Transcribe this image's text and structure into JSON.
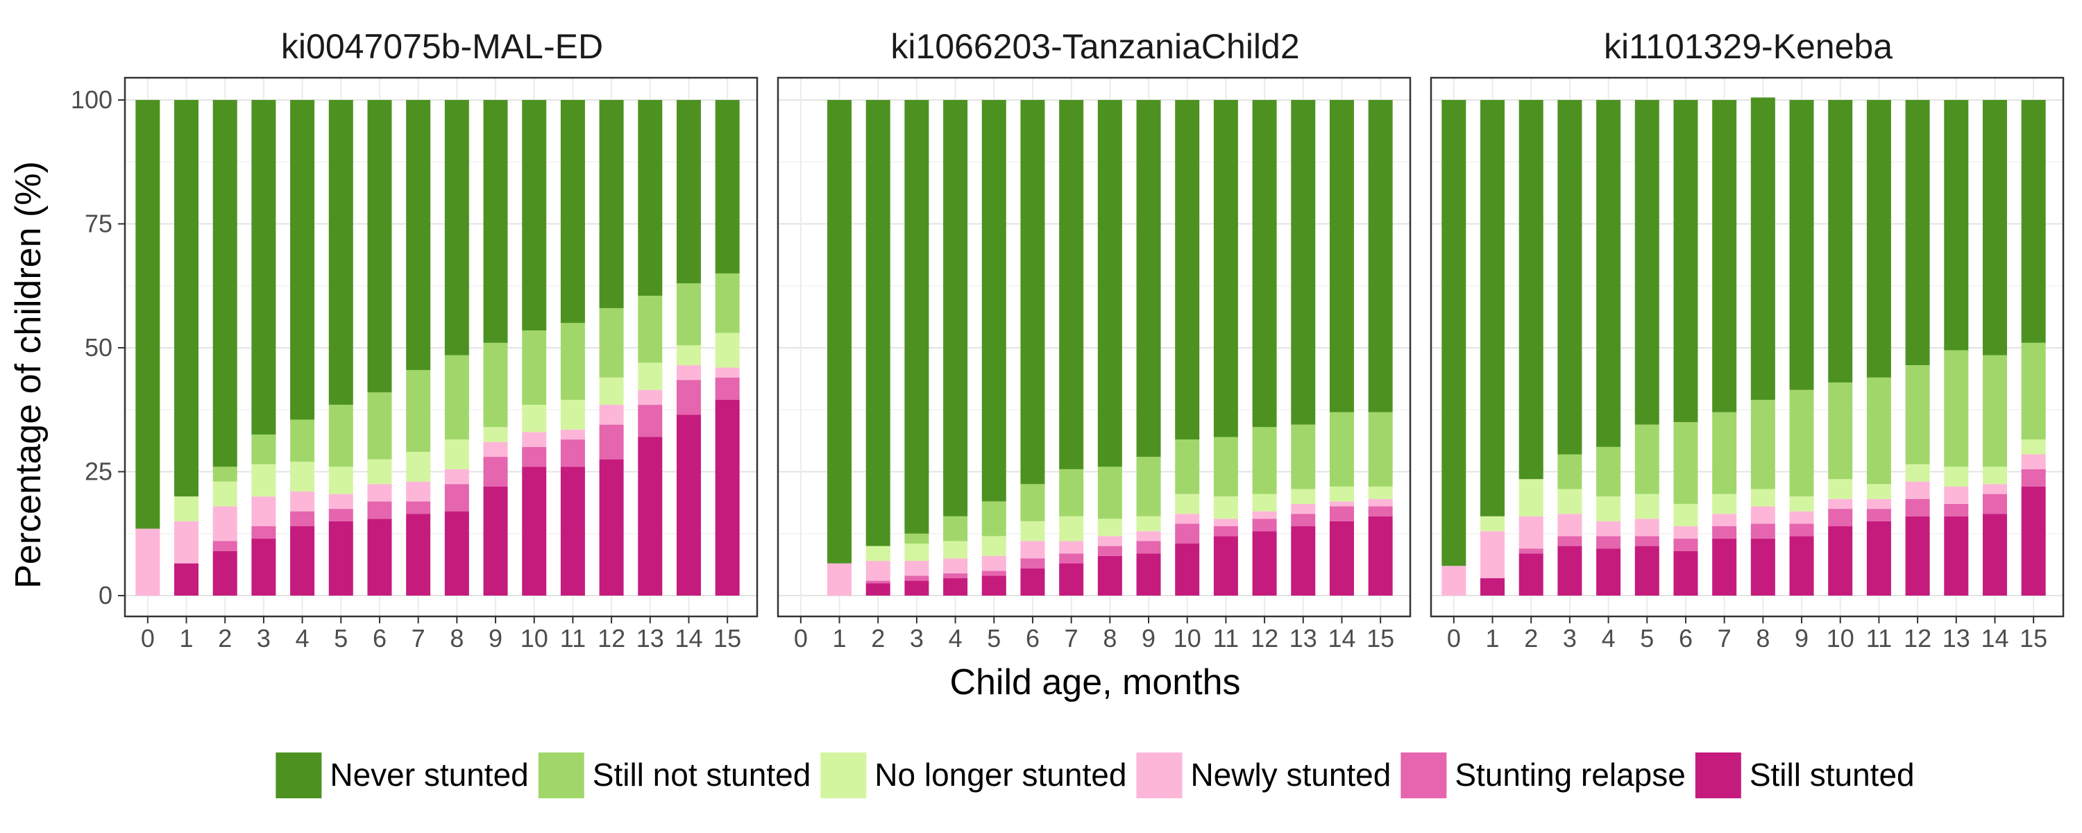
{
  "chart_data": {
    "type": "bar",
    "stacked": true,
    "facets": [
      "ki0047075b-MAL-ED",
      "ki1066203-TanzaniaChild2",
      "ki1101329-Keneba"
    ],
    "categories": [
      "0",
      "1",
      "2",
      "3",
      "4",
      "5",
      "6",
      "7",
      "8",
      "9",
      "10",
      "11",
      "12",
      "13",
      "14",
      "15"
    ],
    "xlabel": "Child age, months",
    "ylabel": "Percentage of children (%)",
    "ylim": [
      0,
      100
    ],
    "yticks": [
      0,
      25,
      50,
      75,
      100
    ],
    "grid": true,
    "legend_position": "bottom",
    "series_order": [
      "Still stunted",
      "Stunting relapse",
      "Newly stunted",
      "No longer stunted",
      "Still not stunted",
      "Never stunted"
    ],
    "legend_order": [
      "Never stunted",
      "Still not stunted",
      "No longer stunted",
      "Newly stunted",
      "Stunting relapse",
      "Still stunted"
    ],
    "colors": {
      "Never stunted": "#4D9221",
      "Still not stunted": "#A1D76A",
      "No longer stunted": "#D4F5A0",
      "Newly stunted": "#FDB6D8",
      "Stunting relapse": "#E565AE",
      "Still stunted": "#C51B7D"
    },
    "panels": [
      {
        "title": "ki0047075b-MAL-ED",
        "series": [
          {
            "name": "Still stunted",
            "values": [
              0,
              6.5,
              9,
              11.5,
              14,
              15,
              15.5,
              16.5,
              17,
              22,
              26,
              26,
              27.5,
              32,
              36.5,
              39.5
            ]
          },
          {
            "name": "Stunting relapse",
            "values": [
              0,
              0,
              2,
              2.5,
              3,
              2.5,
              3.5,
              2.5,
              5.5,
              6,
              4,
              5.5,
              7,
              6.5,
              7,
              4.5
            ]
          },
          {
            "name": "Newly stunted",
            "values": [
              13.5,
              8.5,
              7,
              6,
              4,
              3,
              3.5,
              4,
              3,
              3,
              3,
              2,
              4,
              3,
              3,
              2
            ]
          },
          {
            "name": "No longer stunted",
            "values": [
              0,
              5,
              5,
              6.5,
              6,
              5.5,
              5,
              6,
              6,
              3,
              5.5,
              6,
              5.5,
              5.5,
              4,
              7
            ]
          },
          {
            "name": "Still not stunted",
            "values": [
              0,
              0,
              3,
              6,
              8.5,
              12.5,
              13.5,
              16.5,
              17,
              17,
              15,
              15.5,
              14,
              13.5,
              12.5,
              12
            ]
          },
          {
            "name": "Never stunted",
            "values": [
              86.5,
              80,
              74,
              67.5,
              64.5,
              61.5,
              59,
              54.5,
              51.5,
              49,
              46.5,
              45,
              42,
              39.5,
              37,
              35
            ]
          }
        ]
      },
      {
        "title": "ki1066203-TanzaniaChild2",
        "series": [
          {
            "name": "Still stunted",
            "values": [
              0,
              0,
              2.5,
              3,
              3.5,
              4,
              5.5,
              6.5,
              8,
              8.5,
              10.5,
              12,
              13,
              14,
              15,
              16
            ]
          },
          {
            "name": "Stunting relapse",
            "values": [
              0,
              0,
              0.5,
              1,
              1,
              1,
              2,
              2,
              2,
              2.5,
              4,
              2,
              2.5,
              2.5,
              3,
              2
            ]
          },
          {
            "name": "Newly stunted",
            "values": [
              0,
              6.5,
              4,
              3,
              3,
              3,
              3.5,
              2.5,
              2,
              2,
              2,
              1.5,
              1.5,
              2,
              1,
              1.5
            ]
          },
          {
            "name": "No longer stunted",
            "values": [
              0,
              0,
              3,
              3.5,
              3.5,
              4,
              4,
              5,
              3.5,
              3,
              4,
              4.5,
              3.5,
              3,
              3,
              2.5
            ]
          },
          {
            "name": "Still not stunted",
            "values": [
              0,
              0,
              0,
              2,
              5,
              7,
              7.5,
              9.5,
              10.5,
              12,
              11,
              12,
              13.5,
              13,
              15,
              15
            ]
          },
          {
            "name": "Never stunted",
            "values": [
              0,
              93.5,
              90,
              87.5,
              84,
              81,
              77.5,
              74.5,
              74,
              72,
              68.5,
              68,
              66,
              65.5,
              63,
              63
            ]
          }
        ]
      },
      {
        "title": "ki1101329-Keneba",
        "series": [
          {
            "name": "Still stunted",
            "values": [
              0,
              3.5,
              8.5,
              10,
              9.5,
              10,
              9,
              11.5,
              11.5,
              12,
              14,
              15,
              16,
              16,
              16.5,
              22
            ]
          },
          {
            "name": "Stunting relapse",
            "values": [
              0,
              0,
              1,
              2,
              2.5,
              2,
              2.5,
              2.5,
              3,
              2.5,
              3.5,
              2.5,
              3.5,
              2.5,
              4,
              3.5
            ]
          },
          {
            "name": "Newly stunted",
            "values": [
              6,
              9.5,
              6.5,
              4.5,
              3,
              3.5,
              2.5,
              2.5,
              3.5,
              2.5,
              2,
              2,
              3.5,
              3.5,
              2,
              3
            ]
          },
          {
            "name": "No longer stunted",
            "values": [
              0,
              3,
              7.5,
              5,
              5,
              5,
              4.5,
              4,
              3.5,
              3,
              4,
              3,
              3.5,
              4,
              3.5,
              3
            ]
          },
          {
            "name": "Still not stunted",
            "values": [
              0,
              0,
              0,
              7,
              10,
              14,
              16.5,
              16.5,
              18,
              21.5,
              19.5,
              21.5,
              20,
              23.5,
              22.5,
              19.5
            ]
          },
          {
            "name": "Never stunted",
            "values": [
              94,
              84,
              76.5,
              71.5,
              70,
              65.5,
              65,
              63,
              61,
              58.5,
              57,
              56,
              53.5,
              50.5,
              51.5,
              49
            ]
          }
        ]
      }
    ]
  }
}
